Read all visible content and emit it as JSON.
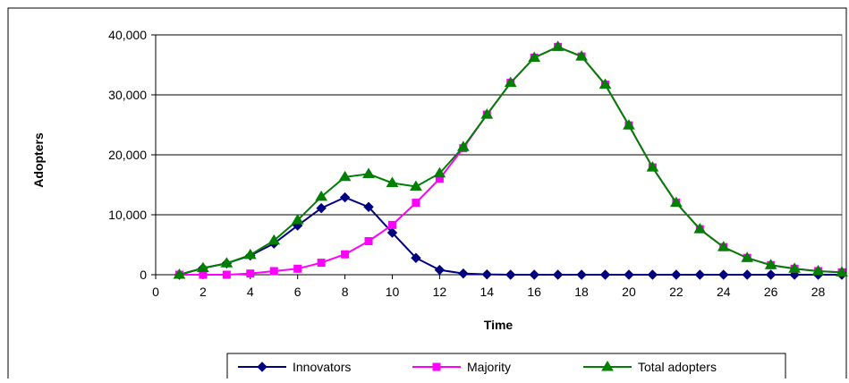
{
  "chart_data": {
    "type": "line",
    "title": "",
    "xlabel": "Time",
    "ylabel": "Adopters",
    "xlim": [
      0,
      29
    ],
    "ylim": [
      0,
      40000
    ],
    "x_ticks": [
      0,
      2,
      4,
      6,
      8,
      10,
      12,
      14,
      16,
      18,
      20,
      22,
      24,
      26,
      28
    ],
    "y_ticks": [
      0,
      10000,
      20000,
      30000,
      40000
    ],
    "y_tick_labels": [
      "0",
      "10,000",
      "20,000",
      "30,000",
      "40,000"
    ],
    "grid": "horizontal",
    "legend": "bottom",
    "x": [
      1,
      2,
      3,
      4,
      5,
      6,
      7,
      8,
      9,
      10,
      11,
      12,
      13,
      14,
      15,
      16,
      17,
      18,
      19,
      20,
      21,
      22,
      23,
      24,
      25,
      26,
      27,
      28,
      29
    ],
    "series": [
      {
        "name": "Innovators",
        "color": "#000080",
        "marker": "diamond",
        "values": [
          0,
          1100,
          1900,
          3200,
          5200,
          8200,
          11100,
          12900,
          11300,
          7000,
          2800,
          800,
          200,
          50,
          0,
          0,
          0,
          0,
          0,
          0,
          0,
          0,
          0,
          0,
          0,
          0,
          0,
          0,
          0
        ]
      },
      {
        "name": "Majority",
        "color": "#ff00ff",
        "marker": "square",
        "values": [
          0,
          0,
          0,
          200,
          600,
          1000,
          2000,
          3400,
          5600,
          8300,
          12000,
          16000,
          21100,
          26700,
          32000,
          36200,
          38000,
          36400,
          31700,
          24900,
          17900,
          12000,
          7600,
          4600,
          2800,
          1600,
          1000,
          600,
          400
        ]
      },
      {
        "name": "Total adopters",
        "color": "#008000",
        "marker": "triangle",
        "values": [
          0,
          1100,
          1900,
          3300,
          5700,
          9100,
          13000,
          16300,
          16800,
          15300,
          14700,
          16900,
          21300,
          26700,
          32000,
          36200,
          38000,
          36400,
          31700,
          24900,
          17900,
          12000,
          7600,
          4600,
          2800,
          1600,
          1000,
          600,
          400
        ]
      }
    ]
  }
}
